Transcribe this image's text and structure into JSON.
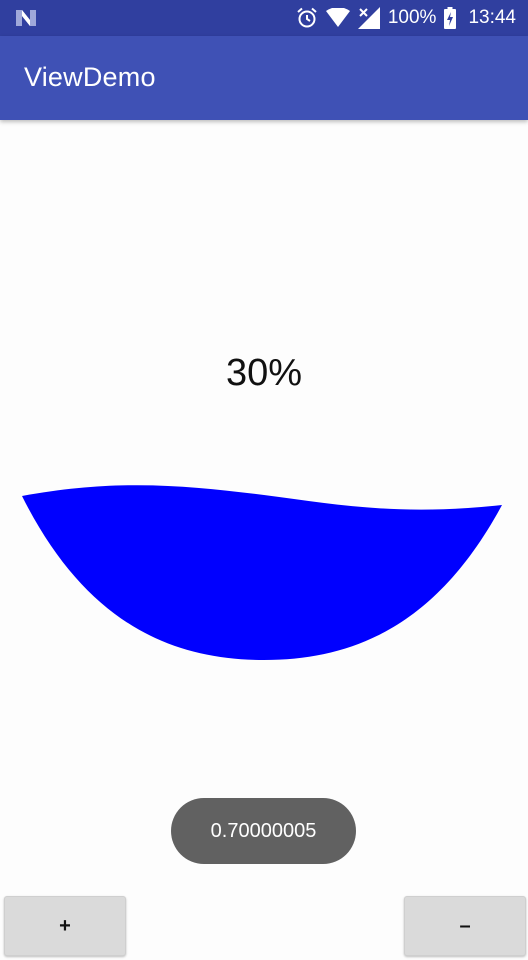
{
  "status_bar": {
    "left_icon": "n-notification-icon",
    "icons": [
      "alarm-icon",
      "wifi-icon",
      "signal-icon",
      "battery-icon"
    ],
    "battery_percent": "100%",
    "time": "13:44",
    "color": "#303f9f"
  },
  "app_bar": {
    "title": "ViewDemo",
    "color": "#3f51b5"
  },
  "wave_view": {
    "percent_label": "30%",
    "level": 0.3,
    "fill_color": "#0000ff"
  },
  "toast": {
    "text": "0.70000005"
  },
  "buttons": {
    "plus_label": "+",
    "minus_label": "–"
  }
}
